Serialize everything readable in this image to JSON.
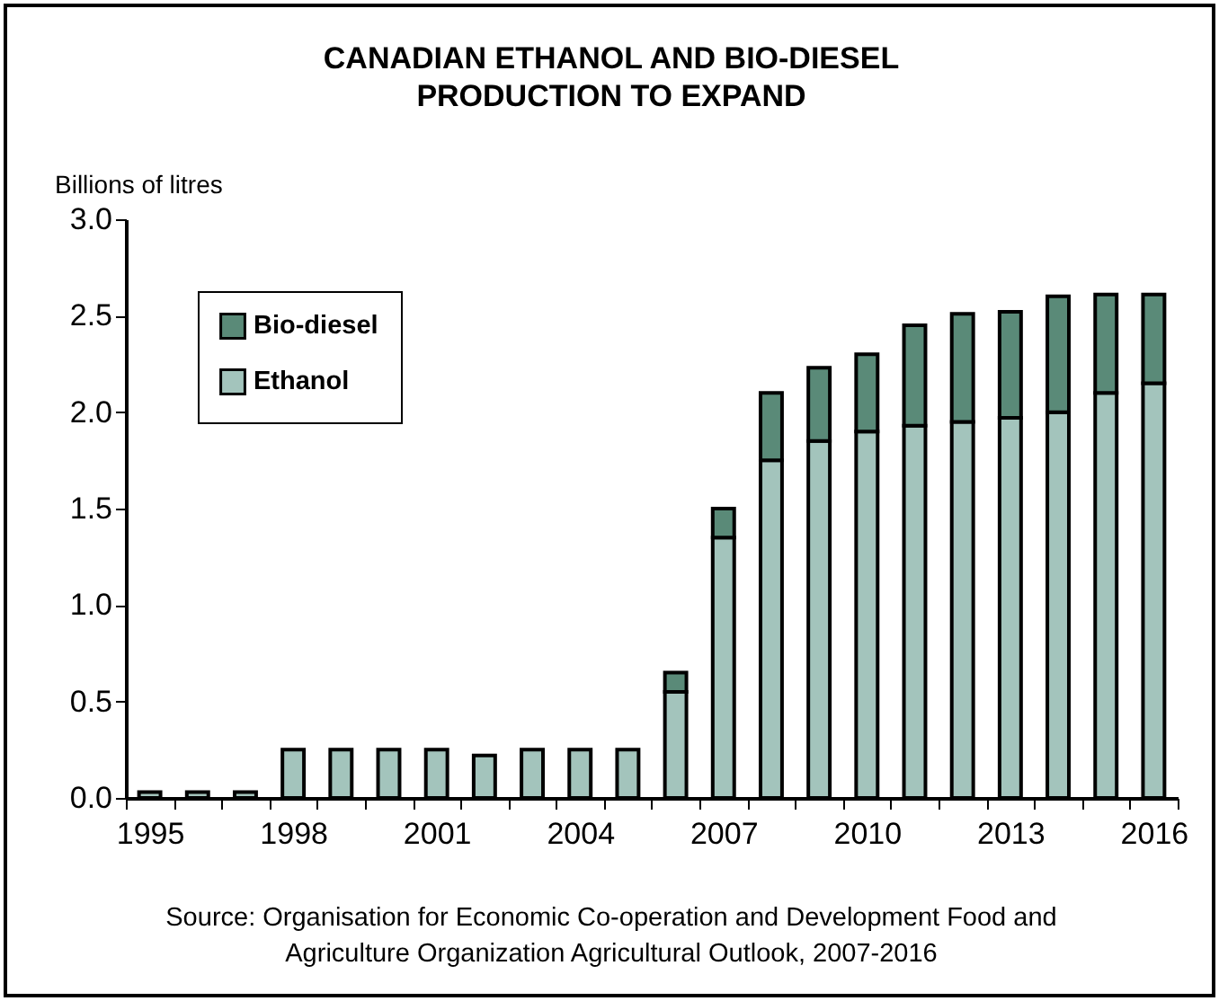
{
  "chart_data": {
    "type": "bar",
    "title": "CANADIAN ETHANOL AND BIO-DIESEL PRODUCTION TO EXPAND",
    "ylabel": "Billions of litres",
    "categories": [
      "1995",
      null,
      null,
      "1998",
      null,
      null,
      "2001",
      null,
      null,
      "2004",
      null,
      null,
      "2007",
      null,
      null,
      "2010",
      null,
      null,
      "2013",
      null,
      null,
      "2016"
    ],
    "stacked": true,
    "series": [
      {
        "name": "Ethanol",
        "color": "#a3c4bc",
        "values": [
          0.03,
          0.03,
          0.03,
          0.25,
          0.25,
          0.25,
          0.25,
          0.22,
          0.25,
          0.25,
          0.25,
          0.55,
          1.35,
          1.75,
          1.85,
          1.9,
          1.93,
          1.95,
          1.97,
          2.0,
          2.1,
          2.15
        ]
      },
      {
        "name": "Bio-diesel",
        "color": "#5a8a78",
        "values": [
          null,
          null,
          null,
          null,
          null,
          null,
          null,
          null,
          null,
          null,
          null,
          0.1,
          0.15,
          0.35,
          0.38,
          0.4,
          0.52,
          0.56,
          0.55,
          0.6,
          0.51,
          0.46
        ]
      }
    ],
    "ylim": [
      0,
      3
    ],
    "yticks": [
      {
        "value": 0,
        "label": "0.0"
      },
      {
        "value": 0.5,
        "label": "0.5"
      },
      {
        "value": 1,
        "label": "1.0"
      },
      {
        "value": 1.5,
        "label": "1.5"
      },
      {
        "value": 2,
        "label": "2.0"
      },
      {
        "value": 2.5,
        "label": "2.5"
      },
      {
        "value": 3,
        "label": "3.0"
      }
    ],
    "legend": "top left",
    "grid": false,
    "annotations": [
      "Source: Organisation for Economic Co-operation and Development Food and Agriculture Organization Agricultural Outlook, 2007-2016"
    ]
  }
}
